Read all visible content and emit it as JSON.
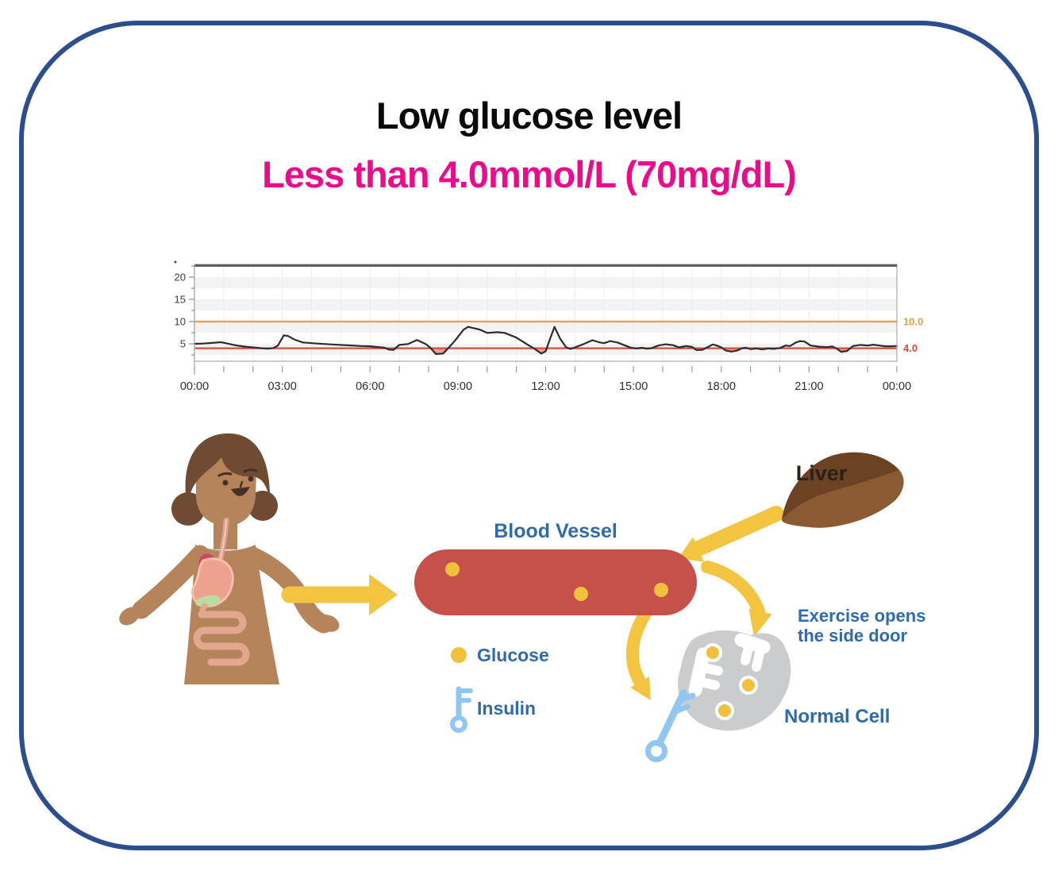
{
  "frame": {
    "border_color": "#2C4E8E"
  },
  "header": {
    "title": "Low glucose level",
    "title_color": "#0A0A0A",
    "subtitle": "Less than 4.0mmol/L (70mg/dL)",
    "subtitle_color": "#EA0C8C"
  },
  "chart_data": {
    "type": "line",
    "title": "",
    "x_range_hours": [
      0,
      24
    ],
    "x_tick_interval_hours": 1,
    "x_label_interval_hours": 3,
    "x_tick_labels": [
      "00:00",
      "03:00",
      "06:00",
      "09:00",
      "12:00",
      "15:00",
      "18:00",
      "21:00",
      "00:00"
    ],
    "y_ticks": [
      5,
      10,
      15,
      20
    ],
    "y_minor_tick_step": 2.5,
    "y_range": [
      1.1,
      22.9
    ],
    "grid": "horizontal-bands",
    "band_color": "#f3f3f4",
    "vgrid_color": "#ededed",
    "axis_color": "#a9a9a9",
    "top_border_color": "#5f5f5f",
    "tick_label_color": "#3a3a3a",
    "reference_lines": [
      {
        "label": "10.0",
        "value": 10,
        "color": "#EC9C46"
      },
      {
        "label": "4.0",
        "value": 4,
        "color": "#DD4B3C"
      }
    ],
    "low_region_fill": "#EBA19A",
    "series": [
      {
        "name": "glucose-trace",
        "color": "#2d2d2d",
        "points": [
          [
            0,
            5
          ],
          [
            0.3,
            5.05
          ],
          [
            0.6,
            5.2
          ],
          [
            0.9,
            5.35
          ],
          [
            1.1,
            5.1
          ],
          [
            1.3,
            4.8
          ],
          [
            1.5,
            4.55
          ],
          [
            1.8,
            4.3
          ],
          [
            2.1,
            4.15
          ],
          [
            2.3,
            4
          ],
          [
            2.5,
            3.9
          ],
          [
            2.7,
            4.05
          ],
          [
            2.85,
            4.6
          ],
          [
            3.05,
            6.9
          ],
          [
            3.2,
            6.75
          ],
          [
            3.4,
            6
          ],
          [
            3.7,
            5.3
          ],
          [
            4.2,
            5.05
          ],
          [
            4.7,
            4.85
          ],
          [
            5.3,
            4.65
          ],
          [
            5.7,
            4.5
          ],
          [
            6,
            4.45
          ],
          [
            6.2,
            4.3
          ],
          [
            6.5,
            4.1
          ],
          [
            6.65,
            3.7
          ],
          [
            6.8,
            3.65
          ],
          [
            7,
            4.75
          ],
          [
            7.3,
            4.95
          ],
          [
            7.6,
            5.85
          ],
          [
            7.9,
            4.95
          ],
          [
            8.05,
            4.2
          ],
          [
            8.25,
            2.7
          ],
          [
            8.5,
            2.8
          ],
          [
            8.75,
            4.6
          ],
          [
            8.9,
            5.7
          ],
          [
            9.2,
            8.2
          ],
          [
            9.35,
            8.8
          ],
          [
            9.75,
            8.2
          ],
          [
            10,
            7.45
          ],
          [
            10.35,
            7.6
          ],
          [
            10.6,
            7.45
          ],
          [
            11,
            6.4
          ],
          [
            11.35,
            4.95
          ],
          [
            11.6,
            3.95
          ],
          [
            11.85,
            2.8
          ],
          [
            12,
            3.3
          ],
          [
            12.15,
            6.1
          ],
          [
            12.3,
            8.8
          ],
          [
            12.5,
            6.1
          ],
          [
            12.7,
            4.2
          ],
          [
            12.85,
            3.85
          ],
          [
            13.05,
            4.3
          ],
          [
            13.3,
            4.95
          ],
          [
            13.6,
            5.8
          ],
          [
            13.85,
            5.3
          ],
          [
            14,
            5.15
          ],
          [
            14.2,
            5.6
          ],
          [
            14.45,
            5.3
          ],
          [
            14.9,
            4.15
          ],
          [
            15.1,
            3.95
          ],
          [
            15.3,
            4.1
          ],
          [
            15.45,
            3.9
          ],
          [
            15.6,
            4
          ],
          [
            15.85,
            4.6
          ],
          [
            16.1,
            4.9
          ],
          [
            16.35,
            4.7
          ],
          [
            16.55,
            4.2
          ],
          [
            16.8,
            4.5
          ],
          [
            17,
            4.3
          ],
          [
            17.15,
            3.6
          ],
          [
            17.35,
            3.65
          ],
          [
            17.55,
            4.3
          ],
          [
            17.7,
            4.85
          ],
          [
            17.85,
            4.6
          ],
          [
            18,
            4.2
          ],
          [
            18.15,
            3.5
          ],
          [
            18.35,
            3.25
          ],
          [
            18.55,
            3.5
          ],
          [
            18.7,
            4
          ],
          [
            18.85,
            4.1
          ],
          [
            19,
            3.8
          ],
          [
            19.2,
            3.95
          ],
          [
            19.4,
            3.75
          ],
          [
            19.6,
            3.95
          ],
          [
            19.8,
            3.85
          ],
          [
            20,
            4.05
          ],
          [
            20.2,
            4.6
          ],
          [
            20.35,
            4.5
          ],
          [
            20.55,
            5.3
          ],
          [
            20.7,
            5.6
          ],
          [
            20.85,
            5.5
          ],
          [
            21.05,
            4.6
          ],
          [
            21.35,
            4.35
          ],
          [
            21.6,
            4.25
          ],
          [
            21.8,
            4.4
          ],
          [
            21.95,
            3.9
          ],
          [
            22.1,
            3.2
          ],
          [
            22.3,
            3.4
          ],
          [
            22.5,
            4.5
          ],
          [
            22.75,
            4.75
          ],
          [
            23,
            4.6
          ],
          [
            23.2,
            4.8
          ],
          [
            23.4,
            4.6
          ],
          [
            23.6,
            4.45
          ],
          [
            23.8,
            4.45
          ],
          [
            24,
            4.5
          ]
        ]
      }
    ]
  },
  "illustration": {
    "labels": {
      "blood_vessel": "Blood Vessel",
      "liver": "Liver",
      "glucose_legend": "Glucose",
      "insulin_legend": "Insulin",
      "exercise": "Exercise opens the side door",
      "normal_cell": "Normal Cell"
    },
    "label_color": "#2E6BAE",
    "liver_label_color": "#2A211B",
    "colors": {
      "glucose_yellow": "#F2C03C",
      "arrow_yellow": "#F3C440",
      "vessel_red": "#C6504A",
      "cell_gray": "#CACCCE",
      "insulin_blue": "#8FC7F0",
      "skin": "#B5845A",
      "hair": "#6F4B33",
      "liver_dark": "#6C4223",
      "liver_light": "#8A5A33"
    }
  }
}
